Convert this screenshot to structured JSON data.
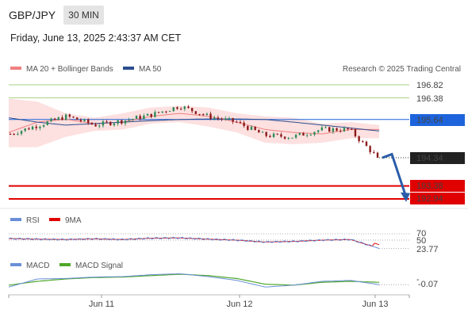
{
  "header": {
    "symbol": "GBP/JPY",
    "interval": "30 MIN",
    "datetime": "Friday, June 13, 2025 2:43:37 AM CET"
  },
  "legend": {
    "ma20": "MA 20 + Bollinger Bands",
    "ma50": "MA 50",
    "credit": "Research © 2025 Trading Central",
    "rsi": "RSI",
    "rsi_ma": "9MA",
    "macd": "MACD",
    "macd_signal": "MACD Signal"
  },
  "colors": {
    "ma20": "#f08080",
    "ma50": "#2a4d8f",
    "bollinger_fill": "#fde0e0",
    "candle_up": "#2e8b57",
    "candle_down": "#8b1a1a",
    "resistance_green": "#a6cf82",
    "resistance_green_text": "#5a9e2a",
    "support_red": "#e00000",
    "badge_blue": "#1d64dc",
    "badge_black": "#222222",
    "arrow": "#2a5ca8",
    "rsi_line": "#6a8fd8",
    "rsi_ma": "#e00000",
    "macd_line": "#6a8fd8",
    "macd_signal": "#4fa82a"
  },
  "chart_data": {
    "type": "candlestick",
    "price_levels": {
      "resistance": [
        196.82,
        196.38
      ],
      "ma50_badge": 195.64,
      "current": 194.34,
      "support": [
        193.38,
        192.94
      ]
    },
    "price_labels": [
      "196.82",
      "196.38",
      "195.64",
      "194.34",
      "193.38",
      "192.94"
    ],
    "x_ticks": [
      "Jun 11",
      "Jun 12",
      "Jun 13"
    ],
    "ma50_path": [
      195.7,
      195.55,
      195.45,
      195.5,
      195.55,
      195.6,
      195.64,
      195.66,
      195.66,
      195.64,
      195.55,
      195.45,
      195.35,
      195.25
    ],
    "ma20_path": [
      195.2,
      195.55,
      195.65,
      195.5,
      195.55,
      195.75,
      195.85,
      195.75,
      195.55,
      195.3,
      195.2,
      195.15,
      195.3,
      195.3
    ],
    "bb_upper": [
      196.35,
      196.25,
      195.85,
      195.7,
      195.85,
      196.05,
      196.1,
      196.05,
      195.85,
      195.75,
      195.7,
      195.5,
      195.55,
      195.45
    ],
    "bb_lower": [
      194.7,
      194.7,
      195.05,
      195.25,
      195.3,
      195.5,
      195.55,
      195.4,
      195.2,
      194.85,
      194.8,
      194.85,
      195.0,
      195.0
    ],
    "close_path": [
      195.15,
      195.45,
      195.75,
      195.45,
      195.6,
      195.8,
      196.1,
      195.75,
      195.55,
      195.1,
      195.05,
      195.3,
      195.3,
      194.34
    ],
    "forecast": [
      194.34,
      194.46,
      193.0
    ],
    "rsi": {
      "levels": [
        "70",
        "50"
      ],
      "current": "23.77",
      "path": [
        55,
        53,
        52,
        54,
        52,
        56,
        57,
        53,
        50,
        44,
        46,
        50,
        52,
        23.77
      ]
    },
    "macd": {
      "zero_label": "-",
      "current": "-0.07",
      "macd_path": [
        -0.12,
        0.05,
        0.06,
        0.09,
        0.1,
        0.14,
        0.16,
        0.1,
        0.02,
        -0.12,
        -0.08,
        0.0,
        0.02,
        -0.07
      ],
      "signal_path": [
        -0.08,
        0.0,
        0.05,
        0.08,
        0.09,
        0.12,
        0.15,
        0.12,
        0.06,
        -0.06,
        -0.08,
        -0.02,
        0.0,
        -0.02
      ]
    }
  }
}
